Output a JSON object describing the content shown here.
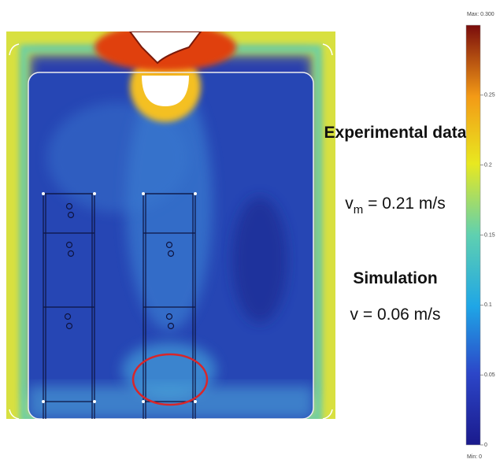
{
  "legend": {
    "max_label": "Max: 0.300",
    "min_label": "Min: 0",
    "lim": [
      0,
      0.3
    ],
    "ticks": [
      0,
      0.05,
      0.1,
      0.15,
      0.2,
      0.25
    ]
  },
  "experimental": {
    "title": "Experimental data",
    "symbol": "v",
    "subscript": "m",
    "value_text": " = 0.21 m/s"
  },
  "simulation": {
    "title": "Simulation",
    "value_text": "v = 0.06 m/s"
  }
}
